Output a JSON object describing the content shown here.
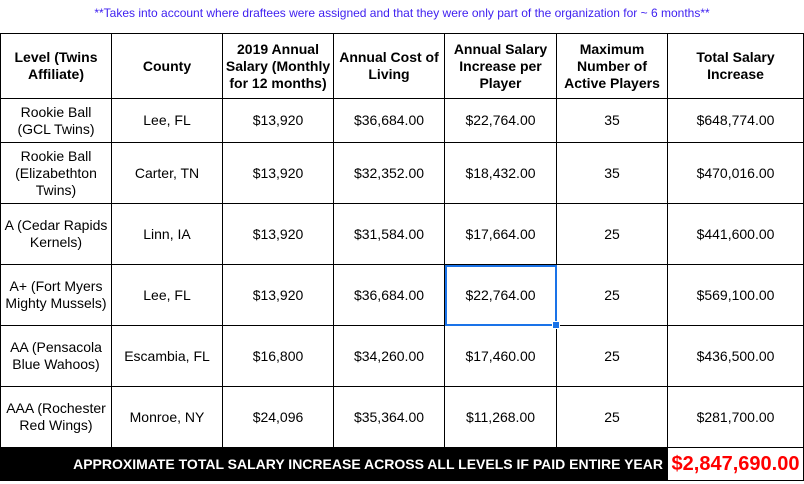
{
  "note": "**Takes into account where draftees were assigned and that they were only part of the organization for ~ 6 months**",
  "headers": [
    "Level (Twins Affiliate)",
    "County",
    "2019 Annual Salary (Monthly for 12 months)",
    "Annual Cost of Living",
    "Annual Salary Increase per Player",
    "Maximum Number of Active Players",
    "Total Salary Increase"
  ],
  "rows": [
    [
      "Rookie Ball (GCL Twins)",
      "Lee, FL",
      "$13,920",
      "$36,684.00",
      "$22,764.00",
      "35",
      "$648,774.00"
    ],
    [
      "Rookie Ball (Elizabethton Twins)",
      "Carter, TN",
      "$13,920",
      "$32,352.00",
      "$18,432.00",
      "35",
      "$470,016.00"
    ],
    [
      "A (Cedar Rapids Kernels)",
      "Linn, IA",
      "$13,920",
      "$31,584.00",
      "$17,664.00",
      "25",
      "$441,600.00"
    ],
    [
      "A+ (Fort Myers Mighty Mussels)",
      "Lee, FL",
      "$13,920",
      "$36,684.00",
      "$22,764.00",
      "25",
      "$569,100.00"
    ],
    [
      "AA (Pensacola Blue Wahoos)",
      "Escambia, FL",
      "$16,800",
      "$34,260.00",
      "$17,460.00",
      "25",
      "$436,500.00"
    ],
    [
      "AAA (Rochester Red Wings)",
      "Monroe, NY",
      "$24,096",
      "$35,364.00",
      "$11,268.00",
      "25",
      "$281,700.00"
    ]
  ],
  "total": {
    "label": "APPROXIMATE TOTAL SALARY INCREASE ACROSS ALL LEVELS IF PAID ENTIRE YEAR",
    "value": "$2,847,690.00"
  },
  "selected_cell": {
    "row": 4,
    "column": "Annual Salary Increase per Player"
  },
  "colors": {
    "note": "#3d1ef0",
    "total_value": "#ff0000",
    "selection": "#1a73e8"
  }
}
